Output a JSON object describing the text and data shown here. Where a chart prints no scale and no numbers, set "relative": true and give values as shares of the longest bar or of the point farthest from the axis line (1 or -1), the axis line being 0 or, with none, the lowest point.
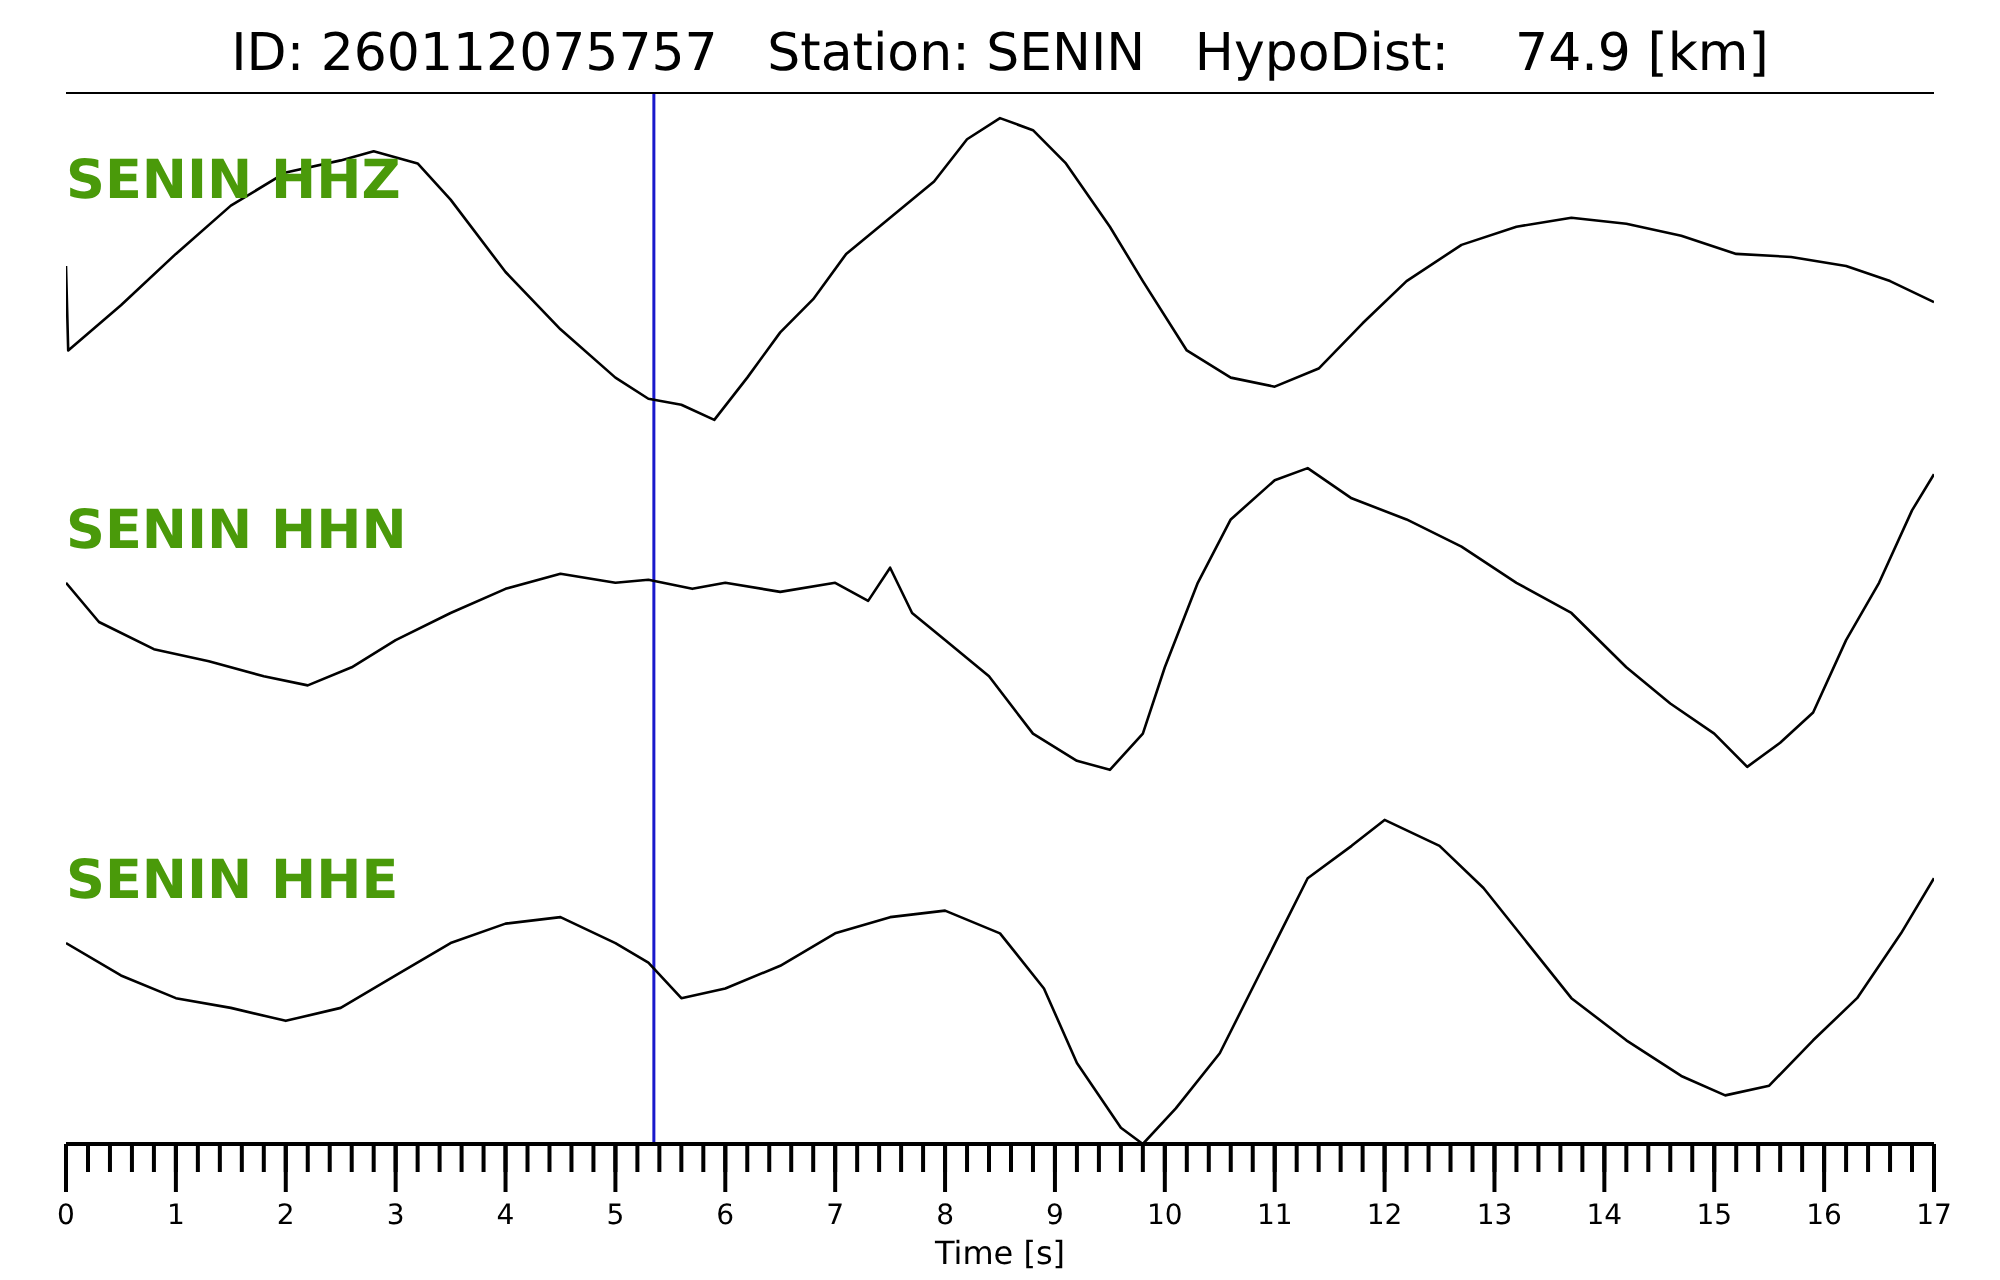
{
  "chart_data": [
    {
      "type": "line",
      "title": "ID: 260112075757   Station: SENIN   HypoDist:    74.9 [km]",
      "relative": true,
      "xlim": [
        0,
        17
      ],
      "tick_labels": false,
      "x": [
        0,
        0.02,
        0.5,
        1,
        1.5,
        2,
        2.5,
        2.8,
        3.2,
        3.5,
        4,
        4.5,
        5,
        5.3,
        5.6,
        5.9,
        6.2,
        6.5,
        6.8,
        7.1,
        7.5,
        7.9,
        8.2,
        8.5,
        8.8,
        9.1,
        9.5,
        9.8,
        10.2,
        10.6,
        11,
        11.4,
        11.8,
        12.2,
        12.7,
        13.2,
        13.7,
        14.2,
        14.7,
        15.2,
        15.7,
        16.2,
        16.6,
        17
      ],
      "series": [
        {
          "name": "SENIN HHZ",
          "color": "#000000",
          "values": [
            0.51,
            0.23,
            0.38,
            0.55,
            0.71,
            0.82,
            0.86,
            0.89,
            0.85,
            0.73,
            0.49,
            0.3,
            0.14,
            0.07,
            0.05,
            0,
            0.14,
            0.29,
            0.4,
            0.55,
            0.67,
            0.79,
            0.93,
            1,
            0.96,
            0.85,
            0.64,
            0.46,
            0.23,
            0.14,
            0.11,
            0.17,
            0.32,
            0.46,
            0.58,
            0.64,
            0.67,
            0.65,
            0.61,
            0.55,
            0.54,
            0.51,
            0.46,
            0.39
          ]
        }
      ],
      "ref_lines": [
        {
          "axis": "x",
          "value": 5.35,
          "color": "#1a1acc"
        }
      ]
    },
    {
      "type": "line",
      "relative": true,
      "xlim": [
        0,
        17
      ],
      "tick_labels": false,
      "x": [
        0,
        0.3,
        0.8,
        1.3,
        1.8,
        2.2,
        2.6,
        3,
        3.5,
        4,
        4.5,
        5,
        5.3,
        5.7,
        6,
        6.5,
        7,
        7.3,
        7.5,
        7.7,
        8,
        8.4,
        8.8,
        9.2,
        9.5,
        9.8,
        10,
        10.3,
        10.6,
        11,
        11.3,
        11.7,
        12.2,
        12.7,
        13.2,
        13.7,
        14.2,
        14.6,
        15,
        15.3,
        15.6,
        15.9,
        16.2,
        16.5,
        16.8,
        17
      ],
      "series": [
        {
          "name": "SENIN HHN",
          "color": "#000000",
          "values": [
            0.62,
            0.49,
            0.4,
            0.36,
            0.31,
            0.28,
            0.34,
            0.43,
            0.52,
            0.6,
            0.65,
            0.62,
            0.63,
            0.6,
            0.62,
            0.59,
            0.62,
            0.56,
            0.67,
            0.52,
            0.43,
            0.31,
            0.12,
            0.03,
            0,
            0.12,
            0.34,
            0.62,
            0.83,
            0.96,
            1,
            0.9,
            0.83,
            0.74,
            0.62,
            0.52,
            0.34,
            0.22,
            0.12,
            0.01,
            0.09,
            0.19,
            0.43,
            0.62,
            0.86,
            0.98
          ]
        }
      ],
      "ref_lines": [
        {
          "axis": "x",
          "value": 5.35,
          "color": "#1a1acc"
        }
      ]
    },
    {
      "type": "line",
      "relative": true,
      "xlim": [
        0,
        17
      ],
      "tick_labels": "x",
      "xlabel": "Time [s]",
      "xticks": [
        0,
        {
          "value": 0.2,
          "label": null
        },
        {
          "value": 0.4,
          "label": null
        },
        {
          "value": 0.6,
          "label": null
        },
        {
          "value": 0.8,
          "label": null
        },
        1,
        {
          "value": 1.2,
          "label": null
        },
        {
          "value": 1.4,
          "label": null
        },
        {
          "value": 1.6,
          "label": null
        },
        {
          "value": 1.8,
          "label": null
        },
        2,
        {
          "value": 2.2,
          "label": null
        },
        {
          "value": 2.4,
          "label": null
        },
        {
          "value": 2.6,
          "label": null
        },
        {
          "value": 2.8,
          "label": null
        },
        3,
        {
          "value": 3.2,
          "label": null
        },
        {
          "value": 3.4,
          "label": null
        },
        {
          "value": 3.6,
          "label": null
        },
        {
          "value": 3.8,
          "label": null
        },
        4,
        {
          "value": 4.2,
          "label": null
        },
        {
          "value": 4.4,
          "label": null
        },
        {
          "value": 4.6,
          "label": null
        },
        {
          "value": 4.8,
          "label": null
        },
        5,
        {
          "value": 5.2,
          "label": null
        },
        {
          "value": 5.4,
          "label": null
        },
        {
          "value": 5.6,
          "label": null
        },
        {
          "value": 5.8,
          "label": null
        },
        6,
        {
          "value": 6.2,
          "label": null
        },
        {
          "value": 6.4,
          "label": null
        },
        {
          "value": 6.6,
          "label": null
        },
        {
          "value": 6.8,
          "label": null
        },
        7,
        {
          "value": 7.2,
          "label": null
        },
        {
          "value": 7.4,
          "label": null
        },
        {
          "value": 7.6,
          "label": null
        },
        {
          "value": 7.8,
          "label": null
        },
        8,
        {
          "value": 8.2,
          "label": null
        },
        {
          "value": 8.4,
          "label": null
        },
        {
          "value": 8.6,
          "label": null
        },
        {
          "value": 8.8,
          "label": null
        },
        9,
        {
          "value": 9.2,
          "label": null
        },
        {
          "value": 9.4,
          "label": null
        },
        {
          "value": 9.6,
          "label": null
        },
        {
          "value": 9.8,
          "label": null
        },
        10,
        {
          "value": 10.2,
          "label": null
        },
        {
          "value": 10.4,
          "label": null
        },
        {
          "value": 10.6,
          "label": null
        },
        {
          "value": 10.8,
          "label": null
        },
        11,
        {
          "value": 11.2,
          "label": null
        },
        {
          "value": 11.4,
          "label": null
        },
        {
          "value": 11.6,
          "label": null
        },
        {
          "value": 11.8,
          "label": null
        },
        12,
        {
          "value": 12.2,
          "label": null
        },
        {
          "value": 12.4,
          "label": null
        },
        {
          "value": 12.6,
          "label": null
        },
        {
          "value": 12.8,
          "label": null
        },
        13,
        {
          "value": 13.2,
          "label": null
        },
        {
          "value": 13.4,
          "label": null
        },
        {
          "value": 13.6,
          "label": null
        },
        {
          "value": 13.8,
          "label": null
        },
        14,
        {
          "value": 14.2,
          "label": null
        },
        {
          "value": 14.4,
          "label": null
        },
        {
          "value": 14.6,
          "label": null
        },
        {
          "value": 14.8,
          "label": null
        },
        15,
        {
          "value": 15.2,
          "label": null
        },
        {
          "value": 15.4,
          "label": null
        },
        {
          "value": 15.6,
          "label": null
        },
        {
          "value": 15.8,
          "label": null
        },
        16,
        {
          "value": 16.2,
          "label": null
        },
        {
          "value": 16.4,
          "label": null
        },
        {
          "value": 16.6,
          "label": null
        },
        {
          "value": 16.8,
          "label": null
        },
        17
      ],
      "x": [
        0,
        0.5,
        1,
        1.5,
        2,
        2.5,
        3,
        3.5,
        4,
        4.5,
        5,
        5.3,
        5.6,
        6,
        6.5,
        7,
        7.5,
        8,
        8.5,
        8.9,
        9.2,
        9.6,
        9.8,
        10.1,
        10.5,
        10.9,
        11.3,
        11.7,
        12,
        12.5,
        12.9,
        13.3,
        13.7,
        14.2,
        14.7,
        15.1,
        15.5,
        15.9,
        16.3,
        16.7,
        17
      ],
      "series": [
        {
          "name": "SENIN HHE",
          "color": "#000000",
          "values": [
            0.62,
            0.52,
            0.45,
            0.42,
            0.38,
            0.42,
            0.52,
            0.62,
            0.68,
            0.7,
            0.62,
            0.56,
            0.45,
            0.48,
            0.55,
            0.65,
            0.7,
            0.72,
            0.65,
            0.48,
            0.25,
            0.05,
            0,
            0.11,
            0.28,
            0.55,
            0.82,
            0.92,
            1,
            0.92,
            0.79,
            0.62,
            0.45,
            0.32,
            0.21,
            0.15,
            0.18,
            0.32,
            0.45,
            0.65,
            0.82
          ]
        }
      ],
      "ref_lines": [
        {
          "axis": "x",
          "value": 5.35,
          "color": "#1a1acc"
        }
      ]
    }
  ]
}
